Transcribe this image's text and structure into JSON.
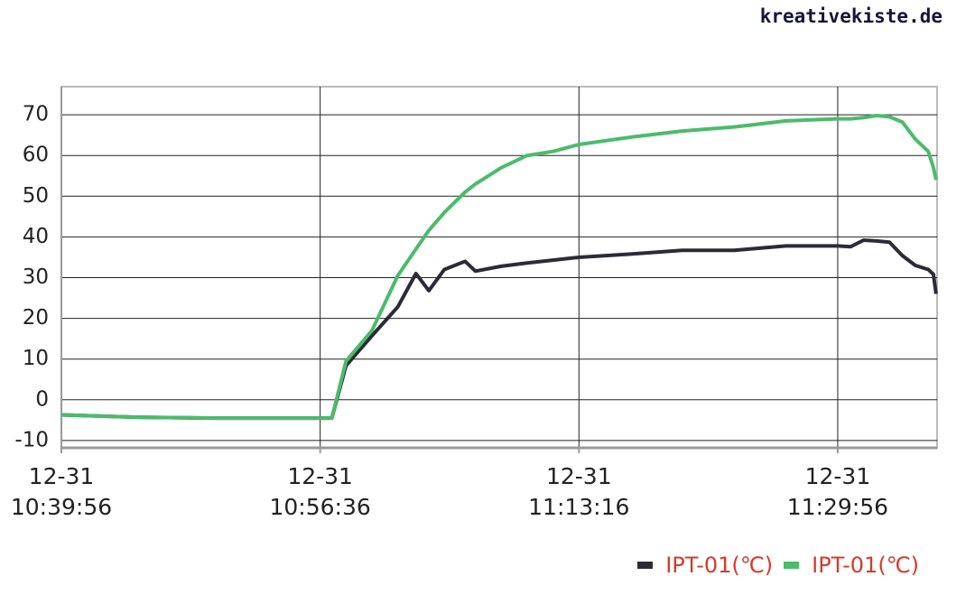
{
  "watermark": "kreativekiste.de",
  "chart_data": {
    "type": "line",
    "x": [
      "12-31 10:39:56",
      "12-31 10:44:56",
      "12-31 10:49:56",
      "12-31 10:54:56",
      "12-31 10:57:21",
      "12-31 10:58:16",
      "12-31 10:59:56",
      "12-31 11:01:36",
      "12-31 11:02:46",
      "12-31 11:03:36",
      "12-31 11:04:36",
      "12-31 11:05:56",
      "12-31 11:06:36",
      "12-31 11:08:16",
      "12-31 11:09:56",
      "12-31 11:11:36",
      "12-31 11:13:16",
      "12-31 11:16:36",
      "12-31 11:19:56",
      "12-31 11:23:16",
      "12-31 11:26:36",
      "12-31 11:29:56",
      "12-31 11:30:46",
      "12-31 11:31:36",
      "12-31 11:32:26",
      "12-31 11:33:16",
      "12-31 11:34:06",
      "12-31 11:34:56",
      "12-31 11:35:46",
      "12-31 11:36:06",
      "12-31 11:36:16"
    ],
    "series": [
      {
        "name": "IPT-01(℃)",
        "color": "#2b2b38",
        "values": [
          -3.7,
          -4.3,
          -4.5,
          -4.5,
          -4.5,
          8.4,
          15.7,
          22.8,
          31,
          26.8,
          32,
          34,
          31.6,
          32.8,
          33.6,
          34.3,
          35,
          35.8,
          36.7,
          36.7,
          37.8,
          37.8,
          37.6,
          39.2,
          39,
          38.7,
          35.4,
          33,
          32,
          30.8,
          26
        ]
      },
      {
        "name": "IPT-01(℃)",
        "color": "#4cbb6c",
        "values": [
          -3.7,
          -4.3,
          -4.5,
          -4.5,
          -4.5,
          9.5,
          17,
          30.5,
          37,
          41.6,
          46,
          51,
          53,
          57,
          60,
          61,
          62.7,
          64.5,
          66,
          67,
          68.5,
          69,
          69,
          69.3,
          69.8,
          69.5,
          68.2,
          64,
          61,
          57,
          54
        ]
      }
    ],
    "xlim": [
      "12-31 10:39:56",
      "12-31 11:36:20"
    ],
    "xticks": [
      "12-31 10:39:56",
      "12-31 10:56:36",
      "12-31 11:13:16",
      "12-31 11:29:56"
    ],
    "ylim": [
      -11.8,
      76.9
    ],
    "yticks": [
      -10,
      0,
      10,
      20,
      30,
      40,
      50,
      60,
      70
    ],
    "grid": true,
    "legend": "bottom-right"
  }
}
